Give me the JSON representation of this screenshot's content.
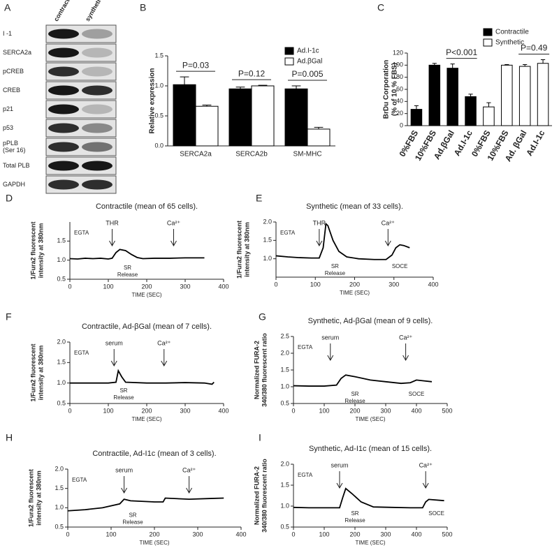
{
  "blot": {
    "panel": "A",
    "columns": [
      "contractile",
      "synthetic"
    ],
    "rows": [
      [
        "I -1"
      ],
      [
        "SERCA2a"
      ],
      [
        "pCREB"
      ],
      [
        "CREB"
      ],
      [
        "p21"
      ],
      [
        "p53"
      ],
      [
        "pPLB",
        "(Ser 16)"
      ],
      [
        "Total PLB"
      ],
      [
        "GAPDH"
      ]
    ]
  },
  "chart_data": [
    {
      "type": "bar",
      "panel": "B",
      "ylabel": [
        "Relative expression"
      ],
      "categories": [
        "SERCA2a",
        "SERCA2b",
        "SM-MHC"
      ],
      "series": [
        {
          "name": "Ad.I-1c",
          "color": "#000000",
          "values": [
            1.02,
            0.95,
            0.95
          ],
          "errors": [
            0.13,
            0.03,
            0.05
          ]
        },
        {
          "name": "Ad.βGal",
          "color": "#ffffff",
          "values": [
            0.66,
            1.0,
            0.28
          ],
          "errors": [
            0.02,
            0.01,
            0.03
          ]
        }
      ],
      "ylim": [
        0,
        1.5
      ],
      "yticks": [
        {
          "value": 0,
          "label": "0.0"
        },
        0.5,
        {
          "value": 1,
          "label": "1.0"
        },
        1.5
      ],
      "annotations": [
        {
          "text": "P=0.03",
          "categories": [
            0,
            0
          ]
        },
        {
          "text": "P=0.12",
          "categories": [
            1,
            1
          ]
        },
        {
          "text": "P=0.005",
          "categories": [
            2,
            2
          ]
        }
      ]
    },
    {
      "type": "bar",
      "panel": "C",
      "ylabel": [
        "BrDu Corporation",
        "(% of 10 % FBS)"
      ],
      "categories": [
        "0%FBS",
        "10%FBS",
        "Ad.βGal",
        "Ad.I-1c",
        "0%FBS",
        "10%FBS",
        "Ad. βGal",
        "Ad.I-1c"
      ],
      "series": [
        {
          "name": "Contractile",
          "color": "#000000",
          "values": [
            27,
            100,
            95,
            48,
            null,
            null,
            null,
            null
          ],
          "errors": [
            6,
            3,
            7,
            4,
            null,
            null,
            null,
            null
          ]
        },
        {
          "name": "Synthetic",
          "color": "#ffffff",
          "values": [
            null,
            null,
            null,
            null,
            31,
            100,
            98,
            103
          ],
          "errors": [
            null,
            null,
            null,
            null,
            7,
            1,
            3,
            6
          ]
        }
      ],
      "ylim": [
        0,
        120
      ],
      "yticks": [
        0,
        20,
        40,
        60,
        80,
        100,
        120
      ],
      "annotations": [
        {
          "text": "P<0.001",
          "categories": [
            2,
            3
          ]
        },
        {
          "text": "P=0.49",
          "categories": [
            6,
            7
          ]
        }
      ]
    },
    {
      "type": "line",
      "panel": "D",
      "title": "Contractile (mean of 65 cells).",
      "ylabel": [
        "1/Fura2 fluorescent",
        "intensity at 380nm"
      ],
      "xlabel": "TIME (SEC)",
      "buffer": "EGTA",
      "arrows": [
        {
          "text": "THR",
          "x": 110
        },
        {
          "text": "Ca²⁺",
          "x": 270
        }
      ],
      "notes": [
        {
          "lines": [
            "SR",
            "Release"
          ],
          "x": 150
        }
      ],
      "x": [
        0,
        20,
        40,
        60,
        80,
        100,
        110,
        120,
        130,
        145,
        160,
        175,
        190,
        220,
        260,
        300,
        350
      ],
      "values": [
        1.04,
        1.03,
        1.05,
        1.04,
        1.05,
        1.03,
        1.05,
        1.2,
        1.28,
        1.25,
        1.15,
        1.07,
        1.04,
        1.05,
        1.05,
        1.06,
        1.06
      ],
      "color": "#000000",
      "xlim": [
        0,
        400
      ],
      "xticks": [
        0,
        100,
        200,
        300,
        400
      ],
      "ylim": [
        0.5,
        2.0
      ],
      "yticks": [
        0.5,
        {
          "value": 1,
          "label": "1.0"
        },
        1.5
      ]
    },
    {
      "type": "line",
      "panel": "E",
      "title": "Synthetic (mean of 33 cells).",
      "ylabel": [
        "1/Fura2 fluorescent",
        "intensity at 380nm"
      ],
      "xlabel": "TIME (SEC)",
      "buffer": "EGTA",
      "arrows": [
        {
          "text": "THR",
          "x": 110
        },
        {
          "text": "Ca²⁺",
          "x": 285
        }
      ],
      "notes": [
        {
          "lines": [
            "SR",
            "Release"
          ],
          "x": 150
        },
        {
          "lines": [
            "SOCE"
          ],
          "x": 315
        }
      ],
      "x": [
        0,
        30,
        60,
        90,
        110,
        120,
        127,
        132,
        145,
        160,
        180,
        210,
        250,
        280,
        295,
        305,
        315,
        325,
        340
      ],
      "values": [
        1.08,
        1.05,
        1.03,
        1.02,
        1.02,
        1.3,
        1.95,
        1.9,
        1.5,
        1.2,
        1.05,
        1.0,
        0.98,
        0.98,
        1.1,
        1.3,
        1.38,
        1.36,
        1.3
      ],
      "color": "#000000",
      "xlim": [
        0,
        400
      ],
      "xticks": [
        0,
        100,
        200,
        300,
        400
      ],
      "ylim": [
        0.5,
        2.0
      ],
      "yticks": [
        {
          "value": 1,
          "label": "1.0"
        },
        1.5,
        {
          "value": 2,
          "label": "2.0"
        }
      ]
    },
    {
      "type": "line",
      "panel": "F",
      "title": "Contractile, Ad-βGal (mean of 7 cells).",
      "ylabel": [
        "1/Fura2 fluorescent",
        "intensity at 380nm"
      ],
      "xlabel": "TIME (SEC)",
      "buffer": "EGTA",
      "arrows": [
        {
          "text": "serum",
          "x": 115
        },
        {
          "text": "Ca²⁺",
          "x": 245
        }
      ],
      "notes": [
        {
          "lines": [
            "SR",
            "Release"
          ],
          "x": 140
        }
      ],
      "x": [
        0,
        50,
        100,
        120,
        126,
        135,
        145,
        200,
        250,
        300,
        350,
        370,
        375
      ],
      "values": [
        1.0,
        1.0,
        1.0,
        1.02,
        1.3,
        1.15,
        1.02,
        1.0,
        1.0,
        1.01,
        1.0,
        0.97,
        1.02
      ],
      "color": "#000000",
      "xlim": [
        0,
        400
      ],
      "xticks": [
        0,
        100,
        200,
        300,
        400
      ],
      "ylim": [
        0.5,
        2.0
      ],
      "yticks": [
        0.5,
        {
          "value": 1,
          "label": "1.0"
        },
        1.5,
        {
          "value": 2,
          "label": "2.0"
        }
      ]
    },
    {
      "type": "line",
      "panel": "G",
      "title": "Synthetic, Ad-βGal (mean of 9 cells).",
      "ylabel": [
        "Normalized FURA-2",
        "340/380 fluorescent ratio"
      ],
      "xlabel": "TIME (SEC)",
      "buffer": "EGTA",
      "arrows": [
        {
          "text": "serum",
          "x": 120
        },
        {
          "text": "Ca²⁺",
          "x": 365
        }
      ],
      "notes": [
        {
          "lines": [
            "SR",
            "Release"
          ],
          "x": 200
        },
        {
          "lines": [
            "SOCE"
          ],
          "x": 400
        }
      ],
      "x": [
        0,
        50,
        100,
        140,
        155,
        170,
        200,
        250,
        300,
        350,
        380,
        400,
        420,
        450
      ],
      "values": [
        1.03,
        1.02,
        1.02,
        1.05,
        1.25,
        1.35,
        1.3,
        1.2,
        1.15,
        1.1,
        1.12,
        1.2,
        1.18,
        1.15
      ],
      "color": "#000000",
      "xlim": [
        0,
        500
      ],
      "xticks": [
        0,
        100,
        200,
        300,
        400,
        500
      ],
      "ylim": [
        0.5,
        2.5
      ],
      "yticks": [
        0.5,
        {
          "value": 1,
          "label": "1.0"
        },
        1.5,
        {
          "value": 2,
          "label": "2.0"
        },
        2.5
      ]
    },
    {
      "type": "line",
      "panel": "H",
      "title": "Contractile, Ad-I1c (mean of 3 cells).",
      "ylabel": [
        "1/Fura2 fluorescent",
        "intensity at 380nm"
      ],
      "xlabel": "TIME (SEC)",
      "buffer": "EGTA",
      "arrows": [
        {
          "text": "serum",
          "x": 130
        },
        {
          "text": "Ca²⁺",
          "x": 280
        }
      ],
      "notes": [
        {
          "lines": [
            "SR",
            "Release"
          ],
          "x": 150
        }
      ],
      "x": [
        0,
        40,
        80,
        120,
        130,
        145,
        200,
        220,
        225,
        280,
        330,
        360
      ],
      "values": [
        0.92,
        0.95,
        1.0,
        1.1,
        1.22,
        1.18,
        1.15,
        1.15,
        1.25,
        1.22,
        1.24,
        1.25
      ],
      "color": "#000000",
      "xlim": [
        0,
        400
      ],
      "xticks": [
        0,
        100,
        200,
        300,
        400
      ],
      "ylim": [
        0.5,
        2.0
      ],
      "yticks": [
        0.5,
        {
          "value": 1,
          "label": "1.0"
        },
        1.5,
        {
          "value": 2,
          "label": "2.0"
        }
      ]
    },
    {
      "type": "line",
      "panel": "I",
      "title": "Synthetic, Ad-I1c (mean of 15 cells).",
      "ylabel": [
        "Normalized FURA-2",
        "340/380 fluorescent ratio"
      ],
      "xlabel": "TIME (SEC)",
      "buffer": "EGTA",
      "arrows": [
        {
          "text": "serum",
          "x": 150
        },
        {
          "text": "Ca²⁺",
          "x": 430
        }
      ],
      "notes": [
        {
          "lines": [
            "SR",
            "Release"
          ],
          "x": 200
        },
        {
          "lines": [
            "SOCE"
          ],
          "x": 465
        }
      ],
      "x": [
        0,
        50,
        100,
        150,
        160,
        170,
        190,
        220,
        260,
        320,
        380,
        420,
        430,
        440,
        490
      ],
      "values": [
        0.97,
        0.96,
        0.96,
        0.96,
        1.2,
        1.42,
        1.3,
        1.1,
        0.98,
        0.97,
        0.96,
        0.96,
        1.1,
        1.16,
        1.13
      ],
      "color": "#000000",
      "xlim": [
        0,
        500
      ],
      "xticks": [
        0,
        100,
        200,
        300,
        400,
        500
      ],
      "ylim": [
        0.5,
        2.0
      ],
      "yticks": [
        0.5,
        {
          "value": 1,
          "label": "1.0"
        },
        1.5,
        {
          "value": 2,
          "label": "2.0"
        }
      ]
    }
  ]
}
